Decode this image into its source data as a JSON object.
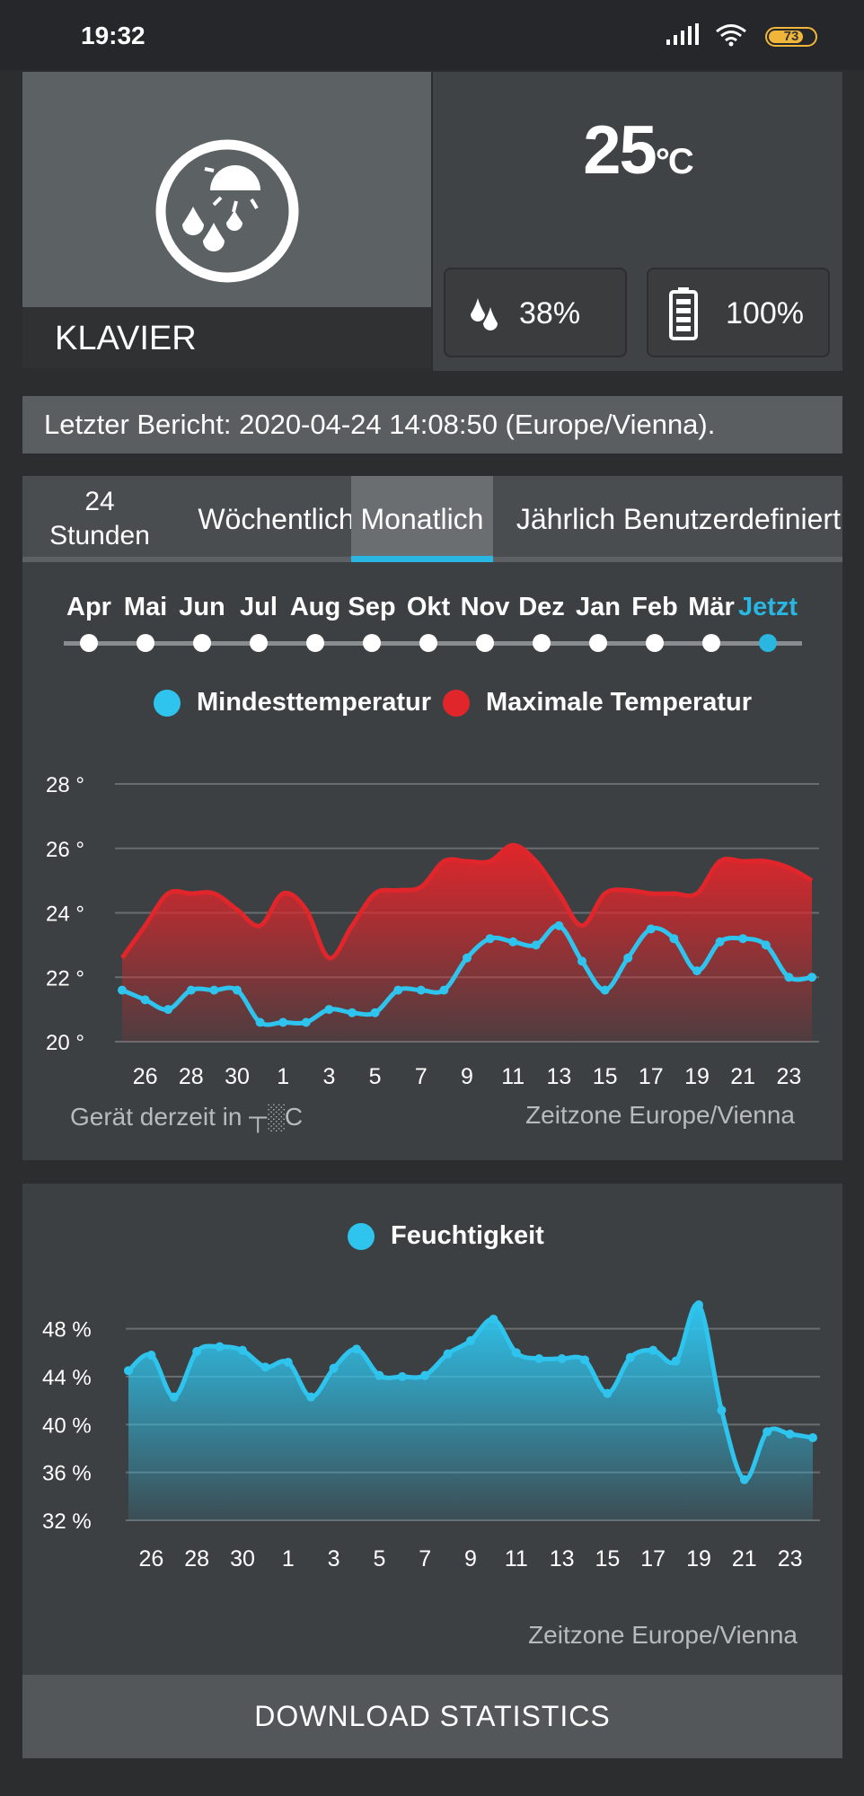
{
  "status": {
    "time": "19:32",
    "battery": "73"
  },
  "device": {
    "name": "KLAVIER",
    "temperature": "25",
    "temp_unit": "°C",
    "humidity": "38%",
    "battery": "100%"
  },
  "report": "Letzter Bericht: 2020-04-24 14:08:50 (Europe/Vienna).",
  "tabs": [
    "24\nStunden",
    "Wöchentlich",
    "Monatlich",
    "Jährlich",
    "Benutzerdefiniert"
  ],
  "months": [
    "Apr",
    "Mai",
    "Jun",
    "Jul",
    "Aug",
    "Sep",
    "Okt",
    "Nov",
    "Dez",
    "Jan",
    "Feb",
    "Mär",
    "Jetzt"
  ],
  "temp_footer": {
    "left": "Gerät derzeit in ┬░C",
    "right": "Zeitzone Europe/Vienna"
  },
  "hum_footer": "Zeitzone Europe/Vienna",
  "download_label": "DOWNLOAD STATISTICS",
  "colors": {
    "accent": "#29b6e0",
    "max": "#e0262b",
    "min": "#2ec4ee"
  },
  "chart_data": [
    {
      "type": "area",
      "x_tick_labels": [
        "26",
        "28",
        "30",
        "1",
        "3",
        "5",
        "7",
        "9",
        "11",
        "13",
        "15",
        "17",
        "19",
        "21",
        "23"
      ],
      "ylim": [
        20,
        28
      ],
      "yticks": [
        "20 °",
        "22 °",
        "24 °",
        "26 °",
        "28 °"
      ],
      "series": [
        {
          "name": "Mindesttemperatur",
          "color": "#2ec4ee",
          "values": [
            21.6,
            21.3,
            21.0,
            21.6,
            21.6,
            21.6,
            20.6,
            20.6,
            20.6,
            21.0,
            20.9,
            20.9,
            21.6,
            21.6,
            21.6,
            22.6,
            23.2,
            23.1,
            23.0,
            23.6,
            22.5,
            21.6,
            22.6,
            23.5,
            23.2,
            22.2,
            23.1,
            23.2,
            23.0,
            22.0,
            22.0
          ]
        },
        {
          "name": "Maximale Temperatur",
          "color": "#e0262b",
          "values": [
            22.6,
            23.6,
            24.6,
            24.6,
            24.6,
            24.1,
            23.6,
            24.6,
            24.1,
            22.6,
            23.6,
            24.6,
            24.7,
            24.8,
            25.6,
            25.6,
            25.6,
            26.1,
            25.6,
            24.6,
            23.6,
            24.6,
            24.7,
            24.6,
            24.6,
            24.6,
            25.6,
            25.6,
            25.6,
            25.4,
            25.0
          ]
        }
      ]
    },
    {
      "type": "area",
      "x_tick_labels": [
        "26",
        "28",
        "30",
        "1",
        "3",
        "5",
        "7",
        "9",
        "11",
        "13",
        "15",
        "17",
        "19",
        "21",
        "23"
      ],
      "ylim": [
        32,
        50
      ],
      "yticks": [
        "32 %",
        "36 %",
        "40 %",
        "44 %",
        "48 %"
      ],
      "series": [
        {
          "name": "Feuchtigkeit",
          "color": "#2ec4ee",
          "values": [
            44.5,
            45.8,
            42.3,
            46.1,
            46.5,
            46.2,
            44.8,
            45.2,
            42.3,
            44.7,
            46.3,
            44.1,
            44.0,
            44.1,
            45.9,
            47.0,
            48.8,
            46.0,
            45.5,
            45.5,
            45.4,
            42.6,
            45.6,
            46.2,
            45.3,
            50.0,
            41.2,
            35.4,
            39.4,
            39.2,
            38.9
          ]
        }
      ]
    }
  ]
}
